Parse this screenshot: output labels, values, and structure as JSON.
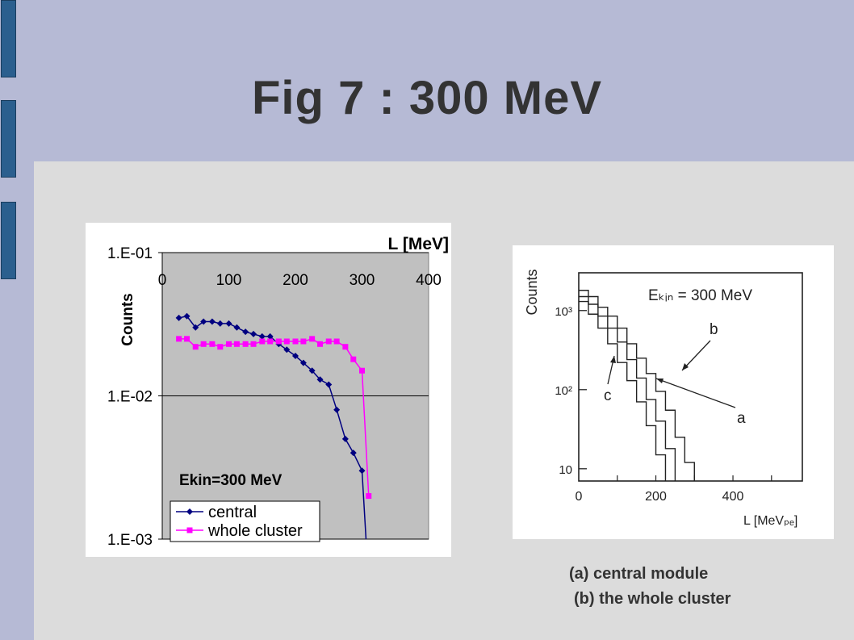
{
  "slide": {
    "title": "Fig 7 : 300 MeV",
    "caption_a": "(a) central module",
    "caption_b": "(b) the whole cluster"
  },
  "colors": {
    "header_bg": "#b6bad5",
    "body_bg": "#dcdcdc",
    "tab": "#2b5f8e",
    "plot_bg": "#c0c0c0",
    "central": "#000080",
    "whole_cluster": "#ff00ff"
  },
  "chart_data": [
    {
      "type": "line",
      "title": "",
      "xlabel": "L [MeV]",
      "ylabel": "Counts",
      "x_ticks": [
        "0",
        "100",
        "200",
        "300",
        "400"
      ],
      "y_ticks": [
        "1.E-01",
        "1.E-02",
        "1.E-03"
      ],
      "xlim": [
        0,
        400
      ],
      "ylim": [
        0.001,
        0.1
      ],
      "y_scale": "log",
      "x_axis_position": "top",
      "grid": "horizontal gridlines at decades",
      "annotation": "Ekin=300 MeV",
      "legend_position": "bottom-left",
      "series": [
        {
          "name": "central",
          "marker": "diamond",
          "color": "#000080",
          "x": [
            25,
            37,
            50,
            62,
            75,
            87,
            100,
            112,
            125,
            137,
            150,
            162,
            175,
            187,
            200,
            212,
            225,
            237,
            250,
            262,
            275,
            287,
            300,
            306
          ],
          "y": [
            0.035,
            0.036,
            0.03,
            0.033,
            0.033,
            0.032,
            0.032,
            0.03,
            0.028,
            0.027,
            0.026,
            0.026,
            0.023,
            0.021,
            0.019,
            0.017,
            0.015,
            0.013,
            0.012,
            0.008,
            0.005,
            0.004,
            0.003,
            0.001
          ]
        },
        {
          "name": "whole cluster",
          "marker": "square",
          "color": "#ff00ff",
          "x": [
            25,
            37,
            50,
            62,
            75,
            87,
            100,
            112,
            125,
            137,
            150,
            162,
            175,
            187,
            200,
            212,
            225,
            237,
            250,
            262,
            275,
            287,
            300,
            310
          ],
          "y": [
            0.025,
            0.025,
            0.022,
            0.023,
            0.023,
            0.022,
            0.023,
            0.023,
            0.023,
            0.023,
            0.024,
            0.024,
            0.024,
            0.024,
            0.024,
            0.024,
            0.025,
            0.023,
            0.024,
            0.024,
            0.022,
            0.018,
            0.015,
            0.002
          ]
        }
      ]
    },
    {
      "type": "line",
      "title": "",
      "xlabel": "L [MeVₚₑ]",
      "ylabel": "Counts",
      "x_ticks": [
        "0",
        "200",
        "400"
      ],
      "y_ticks": [
        "10³",
        "10²",
        "10"
      ],
      "annotation": "Eₖᵢₙ = 300 MeV",
      "curve_labels": [
        "a",
        "b",
        "c"
      ],
      "series": [
        {
          "name": "b",
          "x": [
            0,
            25,
            50,
            75,
            100,
            125,
            150,
            175,
            200,
            225,
            250,
            275,
            300
          ],
          "y": [
            1800,
            1500,
            1100,
            850,
            600,
            380,
            250,
            160,
            95,
            55,
            25,
            12,
            10
          ]
        },
        {
          "name": "a",
          "x": [
            0,
            25,
            50,
            75,
            100,
            125,
            150,
            175,
            200,
            225,
            250
          ],
          "y": [
            1500,
            1200,
            850,
            600,
            400,
            240,
            140,
            75,
            40,
            18,
            10
          ]
        },
        {
          "name": "c",
          "x": [
            0,
            25,
            50,
            75,
            100,
            125,
            150,
            175,
            200,
            225
          ],
          "y": [
            1300,
            900,
            600,
            380,
            220,
            130,
            70,
            35,
            15,
            10
          ]
        }
      ]
    }
  ]
}
